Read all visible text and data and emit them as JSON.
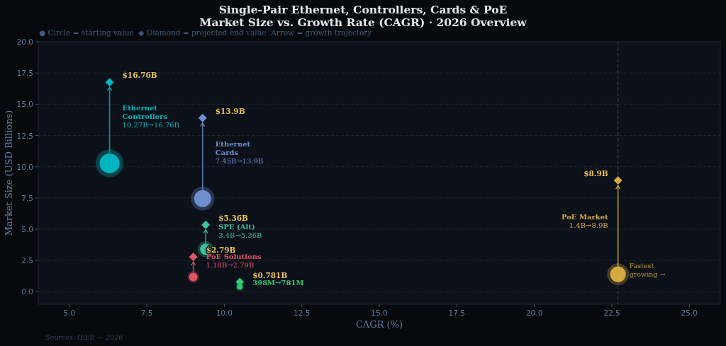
{
  "chart_data": {
    "type": "bubble",
    "title": "Single-Pair Ethernet, Controllers, Cards & PoE\nMarket Size vs. Growth Rate (CAGR) · 2026 Overview",
    "xlabel": "CAGR (%)",
    "ylabel": "Market Size (USD Billions)",
    "xlim": [
      4,
      26
    ],
    "xticks": [
      {
        "value": 5,
        "label": "5.0"
      },
      {
        "value": 7.5,
        "label": "7.5"
      },
      {
        "value": 10,
        "label": "10.0"
      },
      {
        "value": 12.5,
        "label": "12.5"
      },
      {
        "value": 15,
        "label": "15.0"
      },
      {
        "value": 17.5,
        "label": "17.5"
      },
      {
        "value": 20,
        "label": "20.0"
      },
      {
        "value": 22.5,
        "label": "22.5"
      },
      {
        "value": 25,
        "label": "25.0"
      }
    ],
    "ylim": [
      -1,
      20
    ],
    "yticks": [
      {
        "value": 0,
        "label": "0.0"
      },
      {
        "value": 2.5,
        "label": "2.5"
      },
      {
        "value": 5,
        "label": "5.0"
      },
      {
        "value": 7.5,
        "label": "7.5"
      },
      {
        "value": 10,
        "label": "10.0"
      },
      {
        "value": 12.5,
        "label": "12.5"
      },
      {
        "value": 15,
        "label": "15.0"
      },
      {
        "value": 17.5,
        "label": "17.5"
      },
      {
        "value": 20,
        "label": "20.0"
      }
    ],
    "subtitle": "● Circle = starting value  ◆ Diamond = projected end value  Arrow = growth trajectory",
    "grid": "y",
    "series": [
      {
        "type": "bubble",
        "marker": "circle",
        "x": [
          6.3,
          9.3,
          9.4,
          9.0,
          10.5,
          22.7
        ],
        "values": [
          10.27,
          7.45,
          3.4,
          1.18,
          0.4,
          1.4
        ],
        "sizes": [
          1,
          0.73,
          0.33,
          0.18,
          0.08,
          0.62
        ],
        "colors": [
          "#00b5bd",
          "#6f8fcf",
          "#3dbf9a",
          "#e05565",
          "#2ecc71",
          "#d4aa40"
        ]
      },
      {
        "type": "scatter",
        "marker": "diamond",
        "x": [
          6.3,
          9.3,
          9.4,
          9.0,
          10.5,
          22.7
        ],
        "values": [
          16.76,
          13.9,
          5.36,
          2.79,
          0.781,
          8.9
        ],
        "colors": [
          "#00b5bd",
          "#6f8fcf",
          "#3dbf9a",
          "#e05565",
          "#2ecc71",
          "#d4aa40"
        ],
        "value_labels": [
          "$16.76B",
          "$13.9B",
          "$5.36B",
          "$2.79B",
          "$0.781B",
          "$8.9B"
        ]
      }
    ],
    "ref_lines": [
      {
        "axis": "x",
        "value": 22.7,
        "color": "#3a3f48",
        "line_style": "dashed"
      }
    ],
    "annotations": [
      "Ethernet\nControllers\n10.27B→16.76B",
      "Ethernet\nCards\n7.45B→13.9B",
      "PoE Market\n1.4B→8.9B",
      {
        "text": "SPE (Alt)\n3.4B→5.36B",
        "x": 9.4,
        "y": 5.36
      },
      {
        "text": "PoE Solutions\n1.18B→2.79B",
        "x": 9.0,
        "y": 2.79
      },
      {
        "text": "398M→781M",
        "x": 10.5,
        "y": 0.781
      },
      {
        "text": "Fastest\ngrowing →",
        "x": 22.7,
        "y": 1.4
      },
      "Sources: IEEE — 2026"
    ]
  }
}
